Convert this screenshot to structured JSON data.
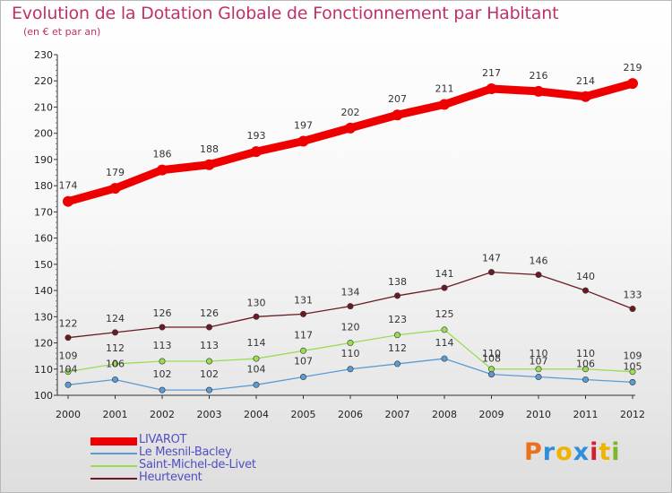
{
  "title": "Evolution de la Dotation Globale de Fonctionnement par Habitant",
  "subtitle": "(en € et par an)",
  "logo": "Proxiti",
  "chart_data": {
    "type": "line",
    "title": "Evolution de la Dotation Globale de Fonctionnement par Habitant",
    "ylabel": "(en € et par an)",
    "xlabel": "",
    "categories": [
      "2000",
      "2001",
      "2002",
      "2003",
      "2004",
      "2005",
      "2006",
      "2007",
      "2008",
      "2009",
      "2010",
      "2011",
      "2012"
    ],
    "ylim": [
      100,
      230
    ],
    "yticks": [
      100,
      110,
      120,
      130,
      140,
      150,
      160,
      170,
      180,
      190,
      200,
      210,
      220,
      230
    ],
    "grid": false,
    "legend_position": "bottom-left",
    "series": [
      {
        "name": "LIVAROT",
        "color": "#ee0000",
        "values": [
          174,
          179,
          186,
          188,
          193,
          197,
          202,
          207,
          211,
          217,
          216,
          214,
          219
        ]
      },
      {
        "name": "Le Mesnil-Bacley",
        "color": "#5b9bd5",
        "values": [
          104,
          106,
          102,
          102,
          104,
          107,
          110,
          112,
          114,
          108,
          107,
          106,
          105
        ]
      },
      {
        "name": "Saint-Michel-de-Livet",
        "color": "#99dd55",
        "values": [
          109,
          112,
          113,
          113,
          114,
          117,
          120,
          123,
          125,
          110,
          110,
          110,
          109
        ]
      },
      {
        "name": "Heurtevent",
        "color": "#6b1a22",
        "values": [
          122,
          124,
          126,
          126,
          130,
          131,
          134,
          138,
          141,
          147,
          146,
          140,
          133
        ]
      }
    ]
  }
}
